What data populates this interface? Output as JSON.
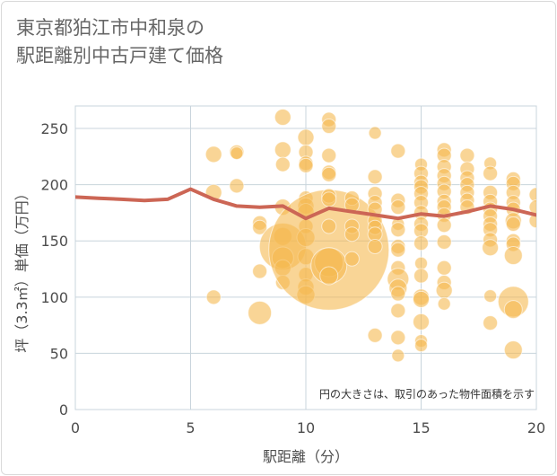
{
  "title_lines": [
    "東京都狛江市中和泉の",
    "駅距離別中古戸建て価格"
  ],
  "chart_data": {
    "type": "scatter",
    "xlabel": "駅距離（分）",
    "ylabel": "坪（3.3㎡）単価（万円）",
    "note": "円の大きさは、取引のあった物件面積を示す",
    "xlim": [
      0,
      20
    ],
    "ylim": [
      0,
      270
    ],
    "xticks": [
      0,
      5,
      10,
      15,
      20
    ],
    "yticks": [
      0,
      50,
      100,
      150,
      200,
      250
    ],
    "grid": true,
    "colors": {
      "bubble": "#f5b950",
      "line": "#cc6655",
      "grid": "#c8d4dc"
    },
    "average_line": {
      "x": [
        0,
        1,
        2,
        3,
        4,
        5,
        6,
        7,
        8,
        9,
        10,
        11,
        12,
        13,
        14,
        15,
        16,
        17,
        18,
        19,
        20
      ],
      "y": [
        189,
        188,
        187,
        186,
        187,
        196,
        187,
        181,
        180,
        181,
        170,
        179,
        176,
        173,
        170,
        174,
        172,
        176,
        181,
        178,
        173
      ]
    },
    "points": [
      {
        "x": 6,
        "y": 227,
        "s": 9
      },
      {
        "x": 6,
        "y": 193,
        "s": 9
      },
      {
        "x": 6,
        "y": 100,
        "s": 8
      },
      {
        "x": 7,
        "y": 229,
        "s": 8
      },
      {
        "x": 7,
        "y": 228,
        "s": 7
      },
      {
        "x": 7,
        "y": 199,
        "s": 8
      },
      {
        "x": 8,
        "y": 166,
        "s": 8
      },
      {
        "x": 8,
        "y": 162,
        "s": 8
      },
      {
        "x": 8,
        "y": 123,
        "s": 8
      },
      {
        "x": 8,
        "y": 86,
        "s": 13
      },
      {
        "x": 9,
        "y": 260,
        "s": 9
      },
      {
        "x": 9,
        "y": 231,
        "s": 9
      },
      {
        "x": 9,
        "y": 218,
        "s": 8
      },
      {
        "x": 9,
        "y": 180,
        "s": 9
      },
      {
        "x": 9,
        "y": 154,
        "s": 10
      },
      {
        "x": 9,
        "y": 145,
        "s": 26
      },
      {
        "x": 9,
        "y": 135,
        "s": 12
      },
      {
        "x": 9,
        "y": 126,
        "s": 9
      },
      {
        "x": 9,
        "y": 113,
        "s": 8
      },
      {
        "x": 10,
        "y": 242,
        "s": 9
      },
      {
        "x": 10,
        "y": 229,
        "s": 8
      },
      {
        "x": 10,
        "y": 219,
        "s": 8
      },
      {
        "x": 10,
        "y": 217,
        "s": 8
      },
      {
        "x": 10,
        "y": 188,
        "s": 8
      },
      {
        "x": 10,
        "y": 181,
        "s": 9
      },
      {
        "x": 10,
        "y": 176,
        "s": 9
      },
      {
        "x": 10,
        "y": 163,
        "s": 8
      },
      {
        "x": 10,
        "y": 153,
        "s": 10
      },
      {
        "x": 10,
        "y": 136,
        "s": 9
      },
      {
        "x": 10,
        "y": 120,
        "s": 8
      },
      {
        "x": 10,
        "y": 109,
        "s": 9
      },
      {
        "x": 10,
        "y": 102,
        "s": 10
      },
      {
        "x": 11,
        "y": 142,
        "s": 67
      },
      {
        "x": 11,
        "y": 258,
        "s": 8
      },
      {
        "x": 11,
        "y": 252,
        "s": 8
      },
      {
        "x": 11,
        "y": 226,
        "s": 8
      },
      {
        "x": 11,
        "y": 211,
        "s": 8
      },
      {
        "x": 11,
        "y": 209,
        "s": 8
      },
      {
        "x": 11,
        "y": 190,
        "s": 8
      },
      {
        "x": 11,
        "y": 187,
        "s": 8
      },
      {
        "x": 11,
        "y": 163,
        "s": 8
      },
      {
        "x": 11,
        "y": 131,
        "s": 16
      },
      {
        "x": 11,
        "y": 128,
        "s": 20
      },
      {
        "x": 11,
        "y": 119,
        "s": 10
      },
      {
        "x": 12,
        "y": 188,
        "s": 8
      },
      {
        "x": 12,
        "y": 182,
        "s": 8
      },
      {
        "x": 12,
        "y": 163,
        "s": 8
      },
      {
        "x": 12,
        "y": 156,
        "s": 8
      },
      {
        "x": 12,
        "y": 134,
        "s": 8
      },
      {
        "x": 13,
        "y": 246,
        "s": 7
      },
      {
        "x": 13,
        "y": 207,
        "s": 8
      },
      {
        "x": 13,
        "y": 192,
        "s": 8
      },
      {
        "x": 13,
        "y": 184,
        "s": 8
      },
      {
        "x": 13,
        "y": 178,
        "s": 8
      },
      {
        "x": 13,
        "y": 168,
        "s": 8
      },
      {
        "x": 13,
        "y": 162,
        "s": 8
      },
      {
        "x": 13,
        "y": 156,
        "s": 8
      },
      {
        "x": 13,
        "y": 145,
        "s": 8
      },
      {
        "x": 13,
        "y": 66,
        "s": 8
      },
      {
        "x": 14,
        "y": 230,
        "s": 8
      },
      {
        "x": 14,
        "y": 186,
        "s": 8
      },
      {
        "x": 14,
        "y": 180,
        "s": 8
      },
      {
        "x": 14,
        "y": 165,
        "s": 7
      },
      {
        "x": 14,
        "y": 160,
        "s": 8
      },
      {
        "x": 14,
        "y": 145,
        "s": 8
      },
      {
        "x": 14,
        "y": 142,
        "s": 8
      },
      {
        "x": 14,
        "y": 126,
        "s": 8
      },
      {
        "x": 14,
        "y": 116,
        "s": 12
      },
      {
        "x": 14,
        "y": 108,
        "s": 10
      },
      {
        "x": 14,
        "y": 103,
        "s": 8
      },
      {
        "x": 14,
        "y": 88,
        "s": 8
      },
      {
        "x": 14,
        "y": 64,
        "s": 8
      },
      {
        "x": 14,
        "y": 48,
        "s": 7
      },
      {
        "x": 15,
        "y": 218,
        "s": 7
      },
      {
        "x": 15,
        "y": 210,
        "s": 8
      },
      {
        "x": 15,
        "y": 202,
        "s": 8
      },
      {
        "x": 15,
        "y": 198,
        "s": 8
      },
      {
        "x": 15,
        "y": 192,
        "s": 8
      },
      {
        "x": 15,
        "y": 184,
        "s": 8
      },
      {
        "x": 15,
        "y": 175,
        "s": 8
      },
      {
        "x": 15,
        "y": 165,
        "s": 8
      },
      {
        "x": 15,
        "y": 159,
        "s": 8
      },
      {
        "x": 15,
        "y": 148,
        "s": 8
      },
      {
        "x": 15,
        "y": 130,
        "s": 7
      },
      {
        "x": 15,
        "y": 119,
        "s": 8
      },
      {
        "x": 15,
        "y": 100,
        "s": 9
      },
      {
        "x": 15,
        "y": 98,
        "s": 9
      },
      {
        "x": 15,
        "y": 78,
        "s": 9
      },
      {
        "x": 15,
        "y": 61,
        "s": 7
      },
      {
        "x": 15,
        "y": 57,
        "s": 7
      },
      {
        "x": 16,
        "y": 231,
        "s": 8
      },
      {
        "x": 16,
        "y": 226,
        "s": 8
      },
      {
        "x": 16,
        "y": 216,
        "s": 8
      },
      {
        "x": 16,
        "y": 208,
        "s": 8
      },
      {
        "x": 16,
        "y": 201,
        "s": 8
      },
      {
        "x": 16,
        "y": 194,
        "s": 8
      },
      {
        "x": 16,
        "y": 185,
        "s": 8
      },
      {
        "x": 16,
        "y": 180,
        "s": 8
      },
      {
        "x": 16,
        "y": 173,
        "s": 8
      },
      {
        "x": 16,
        "y": 164,
        "s": 8
      },
      {
        "x": 16,
        "y": 149,
        "s": 8
      },
      {
        "x": 16,
        "y": 126,
        "s": 8
      },
      {
        "x": 16,
        "y": 113,
        "s": 8
      },
      {
        "x": 16,
        "y": 106,
        "s": 9
      },
      {
        "x": 16,
        "y": 94,
        "s": 7
      },
      {
        "x": 17,
        "y": 226,
        "s": 8
      },
      {
        "x": 17,
        "y": 214,
        "s": 8
      },
      {
        "x": 17,
        "y": 206,
        "s": 8
      },
      {
        "x": 17,
        "y": 200,
        "s": 8
      },
      {
        "x": 17,
        "y": 193,
        "s": 8
      },
      {
        "x": 17,
        "y": 186,
        "s": 8
      },
      {
        "x": 17,
        "y": 180,
        "s": 8
      },
      {
        "x": 18,
        "y": 219,
        "s": 7
      },
      {
        "x": 18,
        "y": 210,
        "s": 8
      },
      {
        "x": 18,
        "y": 193,
        "s": 8
      },
      {
        "x": 18,
        "y": 185,
        "s": 8
      },
      {
        "x": 18,
        "y": 178,
        "s": 8
      },
      {
        "x": 18,
        "y": 172,
        "s": 8
      },
      {
        "x": 18,
        "y": 165,
        "s": 8
      },
      {
        "x": 18,
        "y": 160,
        "s": 8
      },
      {
        "x": 18,
        "y": 151,
        "s": 8
      },
      {
        "x": 18,
        "y": 144,
        "s": 9
      },
      {
        "x": 18,
        "y": 101,
        "s": 7
      },
      {
        "x": 18,
        "y": 77,
        "s": 8
      },
      {
        "x": 19,
        "y": 205,
        "s": 8
      },
      {
        "x": 19,
        "y": 201,
        "s": 8
      },
      {
        "x": 19,
        "y": 193,
        "s": 8
      },
      {
        "x": 19,
        "y": 184,
        "s": 8
      },
      {
        "x": 19,
        "y": 178,
        "s": 8
      },
      {
        "x": 19,
        "y": 168,
        "s": 9
      },
      {
        "x": 19,
        "y": 165,
        "s": 8
      },
      {
        "x": 19,
        "y": 150,
        "s": 8
      },
      {
        "x": 19,
        "y": 147,
        "s": 8
      },
      {
        "x": 19,
        "y": 137,
        "s": 10
      },
      {
        "x": 19,
        "y": 96,
        "s": 17
      },
      {
        "x": 19,
        "y": 89,
        "s": 10
      },
      {
        "x": 19,
        "y": 53,
        "s": 10
      },
      {
        "x": 20,
        "y": 191,
        "s": 8
      },
      {
        "x": 20,
        "y": 180,
        "s": 8
      },
      {
        "x": 20,
        "y": 168,
        "s": 8
      }
    ]
  }
}
